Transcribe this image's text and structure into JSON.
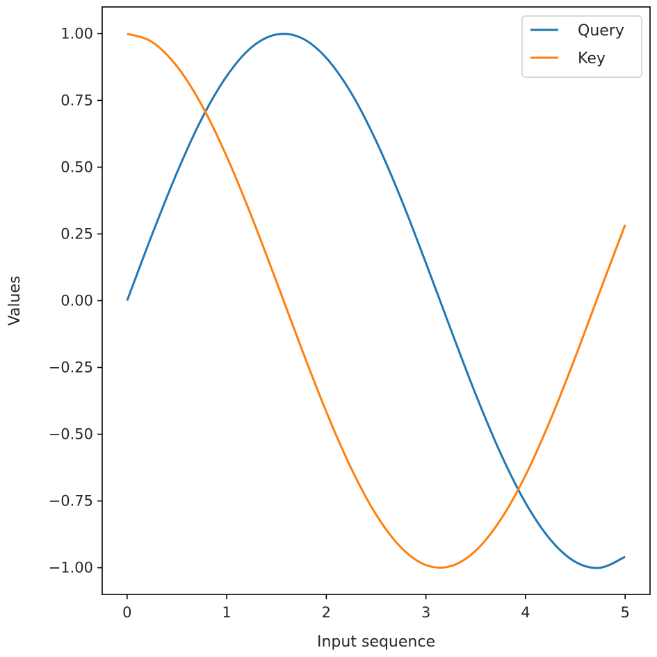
{
  "chart_data": {
    "type": "line",
    "title": "",
    "xlabel": "Input sequence",
    "ylabel": "Values",
    "xlim": [
      -0.25,
      5.25
    ],
    "ylim": [
      -1.1,
      1.1
    ],
    "xticks": [
      0,
      1,
      2,
      3,
      4,
      5
    ],
    "xtick_labels": [
      "0",
      "1",
      "2",
      "3",
      "4",
      "5"
    ],
    "yticks": [
      1.0,
      0.75,
      0.5,
      0.25,
      0.0,
      -0.25,
      -0.5,
      -0.75,
      -1.0
    ],
    "ytick_labels": [
      "1.00",
      "0.75",
      "0.50",
      "0.25",
      "0.00",
      "−0.25",
      "−0.50",
      "−0.75",
      "−1.00"
    ],
    "grid": false,
    "legend_position": "top-right",
    "series": [
      {
        "name": "Query",
        "color": "#1f77b4",
        "x": [
          0,
          0.25,
          0.5,
          0.75,
          1.0,
          1.25,
          1.5,
          1.75,
          2.0,
          2.25,
          2.5,
          2.75,
          3.0,
          3.25,
          3.5,
          3.75,
          4.0,
          4.25,
          4.5,
          4.75,
          5.0
        ],
        "values": [
          0.0,
          0.247,
          0.479,
          0.682,
          0.841,
          0.949,
          0.997,
          0.984,
          0.909,
          0.778,
          0.598,
          0.382,
          0.141,
          -0.108,
          -0.351,
          -0.572,
          -0.757,
          -0.895,
          -0.978,
          -1.0,
          -0.959
        ]
      },
      {
        "name": "Key",
        "color": "#ff7f0e",
        "x": [
          0,
          0.25,
          0.5,
          0.75,
          1.0,
          1.25,
          1.5,
          1.75,
          2.0,
          2.25,
          2.5,
          2.75,
          3.0,
          3.25,
          3.5,
          3.75,
          4.0,
          4.25,
          4.5,
          4.75,
          5.0
        ],
        "values": [
          1.0,
          0.969,
          0.878,
          0.732,
          0.54,
          0.315,
          0.071,
          -0.178,
          -0.416,
          -0.628,
          -0.801,
          -0.924,
          -0.99,
          -0.994,
          -0.936,
          -0.82,
          -0.654,
          -0.446,
          -0.211,
          0.038,
          0.284
        ]
      }
    ]
  }
}
